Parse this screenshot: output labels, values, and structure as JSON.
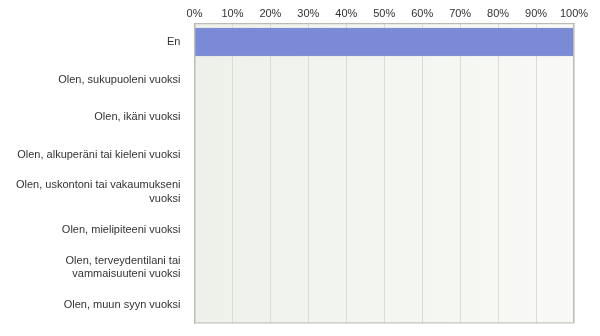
{
  "chart_data": {
    "type": "bar",
    "orientation": "horizontal",
    "categories": [
      "En",
      "Olen, sukupuoleni vuoksi",
      "Olen, ikäni vuoksi",
      "Olen, alkuperäni tai kieleni vuoksi",
      "Olen, uskontoni tai vakaumukseni vuoksi",
      "Olen, mielipiteeni vuoksi",
      "Olen, terveydentilani tai vammaisuuteni vuoksi",
      "Olen, muun syyn vuoksi"
    ],
    "values": [
      100,
      0,
      0,
      0,
      0,
      0,
      0,
      0
    ],
    "color": "#7b8ad6",
    "xlim": [
      0,
      100
    ],
    "xticks": [
      {
        "value": 0,
        "label": "0%"
      },
      {
        "value": 10,
        "label": "10%"
      },
      {
        "value": 20,
        "label": "20%"
      },
      {
        "value": 30,
        "label": "30%"
      },
      {
        "value": 40,
        "label": "40%"
      },
      {
        "value": 50,
        "label": "50%"
      },
      {
        "value": 60,
        "label": "60%"
      },
      {
        "value": 70,
        "label": "70%"
      },
      {
        "value": 80,
        "label": "80%"
      },
      {
        "value": 90,
        "label": "90%"
      },
      {
        "value": 100,
        "label": "100%"
      }
    ],
    "grid": true
  }
}
